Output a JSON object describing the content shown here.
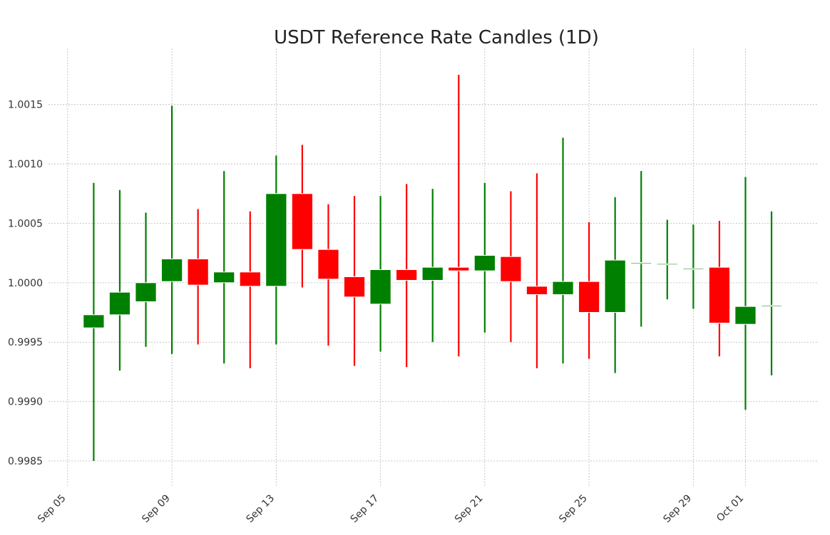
{
  "chart_data": {
    "type": "candlestick",
    "title": "USDT Reference Rate Candles (1D)",
    "xlabel": "",
    "ylabel": "",
    "ylim": [
      0.99835,
      1.0019
    ],
    "x_range": [
      "2024-09-04T09:00",
      "2024-10-03T18:00"
    ],
    "y_ticks": [
      "0.9985",
      "0.9990",
      "0.9995",
      "1.0000",
      "1.0005",
      "1.0010",
      "1.0015"
    ],
    "x_ticks": [
      {
        "date": "2024-09-05",
        "label": "Sep 05"
      },
      {
        "date": "2024-09-09",
        "label": "Sep 09"
      },
      {
        "date": "2024-09-13",
        "label": "Sep 13"
      },
      {
        "date": "2024-09-17",
        "label": "Sep 17"
      },
      {
        "date": "2024-09-21",
        "label": "Sep 21"
      },
      {
        "date": "2024-09-25",
        "label": "Sep 25"
      },
      {
        "date": "2024-09-29",
        "label": "Sep 29"
      },
      {
        "date": "2024-10-01",
        "label": "Oct 01"
      }
    ],
    "grid": true,
    "colors": {
      "up": "#008000",
      "down": "#ff0000"
    },
    "candles": [
      {
        "date": "2024-09-06",
        "open": 0.99962,
        "high": 1.00084,
        "low": 0.9985,
        "close": 0.99973
      },
      {
        "date": "2024-09-07",
        "open": 0.99973,
        "high": 1.00078,
        "low": 0.99926,
        "close": 0.99992
      },
      {
        "date": "2024-09-08",
        "open": 0.99984,
        "high": 1.00059,
        "low": 0.99946,
        "close": 1.0
      },
      {
        "date": "2024-09-09",
        "open": 1.00001,
        "high": 1.00149,
        "low": 0.9994,
        "close": 1.0002
      },
      {
        "date": "2024-09-10",
        "open": 1.0002,
        "high": 1.00062,
        "low": 0.99948,
        "close": 0.99998
      },
      {
        "date": "2024-09-11",
        "open": 1.0,
        "high": 1.00094,
        "low": 0.99932,
        "close": 1.00009
      },
      {
        "date": "2024-09-12",
        "open": 1.00009,
        "high": 1.0006,
        "low": 0.99928,
        "close": 0.99997
      },
      {
        "date": "2024-09-13",
        "open": 0.99997,
        "high": 1.00107,
        "low": 0.99948,
        "close": 1.00075
      },
      {
        "date": "2024-09-14",
        "open": 1.00075,
        "high": 1.00116,
        "low": 0.99996,
        "close": 1.00028
      },
      {
        "date": "2024-09-15",
        "open": 1.00028,
        "high": 1.00066,
        "low": 0.99947,
        "close": 1.00003
      },
      {
        "date": "2024-09-16",
        "open": 1.00005,
        "high": 1.00073,
        "low": 0.9993,
        "close": 0.99988
      },
      {
        "date": "2024-09-17",
        "open": 0.99982,
        "high": 1.00073,
        "low": 0.99942,
        "close": 1.00011
      },
      {
        "date": "2024-09-18",
        "open": 1.00011,
        "high": 1.00083,
        "low": 0.99929,
        "close": 1.00002
      },
      {
        "date": "2024-09-19",
        "open": 1.00002,
        "high": 1.00079,
        "low": 0.9995,
        "close": 1.00013
      },
      {
        "date": "2024-09-20",
        "open": 1.00013,
        "high": 1.00175,
        "low": 0.99938,
        "close": 1.0001
      },
      {
        "date": "2024-09-21",
        "open": 1.0001,
        "high": 1.00084,
        "low": 0.99958,
        "close": 1.00023
      },
      {
        "date": "2024-09-22",
        "open": 1.00022,
        "high": 1.00077,
        "low": 0.9995,
        "close": 1.00001
      },
      {
        "date": "2024-09-23",
        "open": 0.99997,
        "high": 1.00092,
        "low": 0.99928,
        "close": 0.9999
      },
      {
        "date": "2024-09-24",
        "open": 0.9999,
        "high": 1.00122,
        "low": 0.99932,
        "close": 1.00001
      },
      {
        "date": "2024-09-25",
        "open": 1.00001,
        "high": 1.00051,
        "low": 0.99936,
        "close": 0.99975
      },
      {
        "date": "2024-09-26",
        "open": 0.99975,
        "high": 1.00072,
        "low": 0.99924,
        "close": 1.00019
      },
      {
        "date": "2024-09-27",
        "open": 1.00017,
        "high": 1.00094,
        "low": 0.99963,
        "close": 1.00017
      },
      {
        "date": "2024-09-28",
        "open": 1.00016,
        "high": 1.00053,
        "low": 0.99986,
        "close": 1.00016
      },
      {
        "date": "2024-09-29",
        "open": 1.00012,
        "high": 1.00049,
        "low": 0.99978,
        "close": 1.00012
      },
      {
        "date": "2024-09-30",
        "open": 1.00013,
        "high": 1.00052,
        "low": 0.99938,
        "close": 0.99966
      },
      {
        "date": "2024-10-01",
        "open": 0.99965,
        "high": 1.00089,
        "low": 0.99893,
        "close": 0.9998
      },
      {
        "date": "2024-10-02",
        "open": 0.99981,
        "high": 1.0006,
        "low": 0.99922,
        "close": 0.99981
      }
    ]
  }
}
